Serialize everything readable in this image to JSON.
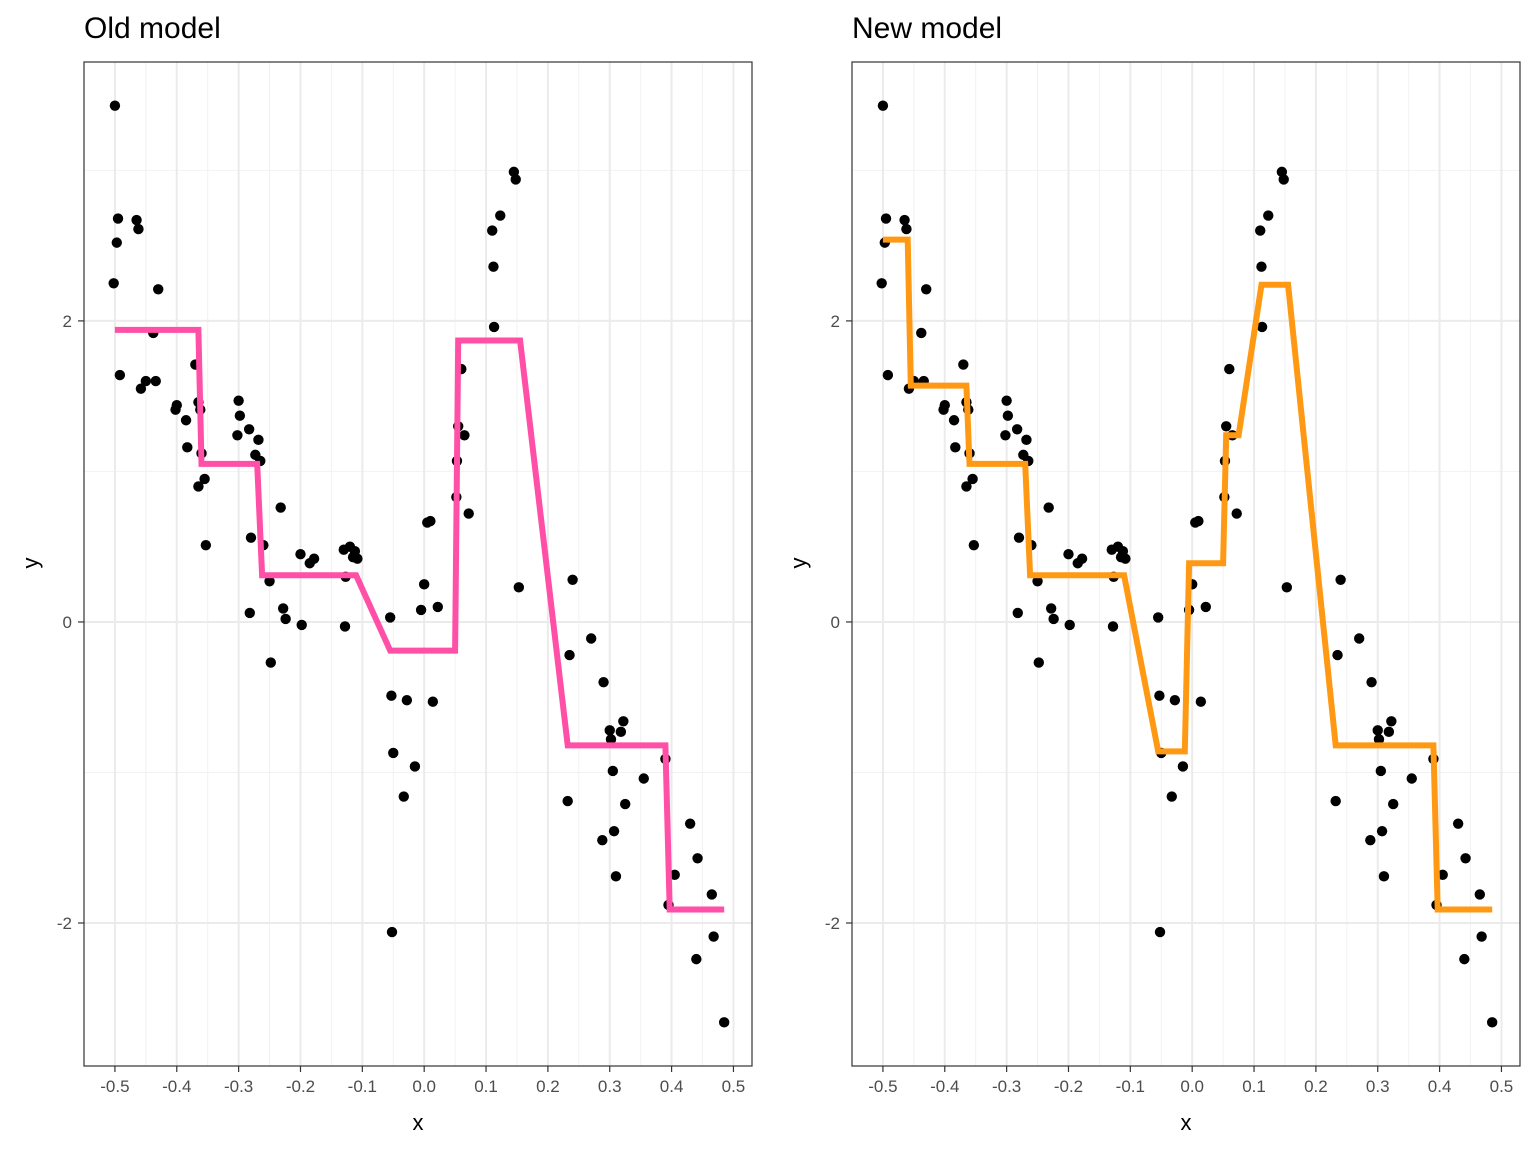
{
  "chart_data": [
    {
      "type": "scatter",
      "title": "Old model",
      "xlabel": "x",
      "ylabel": "y",
      "xlim": [
        -0.55,
        0.53
      ],
      "ylim": [
        -2.95,
        3.72
      ],
      "xticks": [
        "-0.5",
        "-0.4",
        "-0.3",
        "-0.2",
        "-0.1",
        "0.0",
        "0.1",
        "0.2",
        "0.3",
        "0.4",
        "0.5"
      ],
      "yticks": [
        "-2",
        "0",
        "2"
      ],
      "grid": true,
      "line_color": "#ff4fa7",
      "points": [
        [
          -0.5,
          3.43
        ],
        [
          -0.495,
          2.68
        ],
        [
          -0.497,
          2.52
        ],
        [
          -0.502,
          2.25
        ],
        [
          -0.492,
          1.64
        ],
        [
          -0.465,
          2.67
        ],
        [
          -0.462,
          2.61
        ],
        [
          -0.458,
          1.55
        ],
        [
          -0.45,
          1.6
        ],
        [
          -0.438,
          1.92
        ],
        [
          -0.434,
          1.6
        ],
        [
          -0.43,
          2.21
        ],
        [
          -0.402,
          1.41
        ],
        [
          -0.4,
          1.44
        ],
        [
          -0.385,
          1.34
        ],
        [
          -0.383,
          1.16
        ],
        [
          -0.37,
          1.71
        ],
        [
          -0.365,
          1.46
        ],
        [
          -0.362,
          1.41
        ],
        [
          -0.36,
          1.12
        ],
        [
          -0.365,
          0.9
        ],
        [
          -0.355,
          0.95
        ],
        [
          -0.353,
          0.51
        ],
        [
          -0.3,
          1.47
        ],
        [
          -0.298,
          1.37
        ],
        [
          -0.302,
          1.24
        ],
        [
          -0.283,
          1.28
        ],
        [
          -0.28,
          0.56
        ],
        [
          -0.282,
          0.06
        ],
        [
          -0.273,
          1.11
        ],
        [
          -0.268,
          1.21
        ],
        [
          -0.265,
          1.07
        ],
        [
          -0.26,
          0.51
        ],
        [
          -0.25,
          0.27
        ],
        [
          -0.248,
          -0.27
        ],
        [
          -0.232,
          0.76
        ],
        [
          -0.228,
          0.09
        ],
        [
          -0.224,
          0.02
        ],
        [
          -0.2,
          0.45
        ],
        [
          -0.198,
          -0.02
        ],
        [
          -0.185,
          0.39
        ],
        [
          -0.178,
          0.42
        ],
        [
          -0.13,
          0.48
        ],
        [
          -0.127,
          0.3
        ],
        [
          -0.128,
          -0.03
        ],
        [
          -0.12,
          0.5
        ],
        [
          -0.115,
          0.43
        ],
        [
          -0.112,
          0.47
        ],
        [
          -0.108,
          0.42
        ],
        [
          -0.055,
          0.03
        ],
        [
          -0.053,
          -0.49
        ],
        [
          -0.05,
          -0.87
        ],
        [
          -0.052,
          -2.06
        ],
        [
          -0.033,
          -1.16
        ],
        [
          -0.028,
          -0.52
        ],
        [
          -0.015,
          -0.96
        ],
        [
          -0.005,
          0.08
        ],
        [
          0.0,
          0.25
        ],
        [
          0.005,
          0.66
        ],
        [
          0.01,
          0.67
        ],
        [
          0.014,
          -0.53
        ],
        [
          0.022,
          0.1
        ],
        [
          0.052,
          0.83
        ],
        [
          0.053,
          1.07
        ],
        [
          0.055,
          1.3
        ],
        [
          0.06,
          1.68
        ],
        [
          0.065,
          1.24
        ],
        [
          0.072,
          0.72
        ],
        [
          0.11,
          2.6
        ],
        [
          0.112,
          2.36
        ],
        [
          0.113,
          1.96
        ],
        [
          0.123,
          2.7
        ],
        [
          0.145,
          2.99
        ],
        [
          0.148,
          2.94
        ],
        [
          0.153,
          0.23
        ],
        [
          0.232,
          -1.19
        ],
        [
          0.235,
          -0.22
        ],
        [
          0.24,
          0.28
        ],
        [
          0.27,
          -0.11
        ],
        [
          0.288,
          -1.45
        ],
        [
          0.29,
          -0.4
        ],
        [
          0.3,
          -0.72
        ],
        [
          0.302,
          -0.78
        ],
        [
          0.305,
          -0.99
        ],
        [
          0.307,
          -1.39
        ],
        [
          0.31,
          -1.69
        ],
        [
          0.318,
          -0.73
        ],
        [
          0.322,
          -0.66
        ],
        [
          0.325,
          -1.21
        ],
        [
          0.355,
          -1.04
        ],
        [
          0.39,
          -0.91
        ],
        [
          0.395,
          -1.88
        ],
        [
          0.405,
          -1.68
        ],
        [
          0.43,
          -1.34
        ],
        [
          0.44,
          -2.24
        ],
        [
          0.442,
          -1.57
        ],
        [
          0.465,
          -1.81
        ],
        [
          0.468,
          -2.09
        ],
        [
          0.485,
          -2.66
        ]
      ],
      "fit_line": [
        [
          -0.5,
          1.94
        ],
        [
          -0.365,
          1.94
        ],
        [
          -0.36,
          1.05
        ],
        [
          -0.27,
          1.05
        ],
        [
          -0.262,
          0.31
        ],
        [
          -0.11,
          0.31
        ],
        [
          -0.055,
          -0.19
        ],
        [
          0.05,
          -0.19
        ],
        [
          0.055,
          1.87
        ],
        [
          0.155,
          1.87
        ],
        [
          0.232,
          -0.82
        ],
        [
          0.39,
          -0.82
        ],
        [
          0.397,
          -1.91
        ],
        [
          0.485,
          -1.91
        ]
      ]
    },
    {
      "type": "scatter",
      "title": "New model",
      "xlabel": "x",
      "ylabel": "y",
      "xlim": [
        -0.55,
        0.53
      ],
      "ylim": [
        -2.95,
        3.72
      ],
      "xticks": [
        "-0.5",
        "-0.4",
        "-0.3",
        "-0.2",
        "-0.1",
        "0.0",
        "0.1",
        "0.2",
        "0.3",
        "0.4",
        "0.5"
      ],
      "yticks": [
        "-2",
        "0",
        "2"
      ],
      "grid": true,
      "line_color": "#ff9913",
      "points": [
        [
          -0.5,
          3.43
        ],
        [
          -0.495,
          2.68
        ],
        [
          -0.497,
          2.52
        ],
        [
          -0.502,
          2.25
        ],
        [
          -0.492,
          1.64
        ],
        [
          -0.465,
          2.67
        ],
        [
          -0.462,
          2.61
        ],
        [
          -0.458,
          1.55
        ],
        [
          -0.45,
          1.6
        ],
        [
          -0.438,
          1.92
        ],
        [
          -0.434,
          1.6
        ],
        [
          -0.43,
          2.21
        ],
        [
          -0.402,
          1.41
        ],
        [
          -0.4,
          1.44
        ],
        [
          -0.385,
          1.34
        ],
        [
          -0.383,
          1.16
        ],
        [
          -0.37,
          1.71
        ],
        [
          -0.365,
          1.46
        ],
        [
          -0.362,
          1.41
        ],
        [
          -0.36,
          1.12
        ],
        [
          -0.365,
          0.9
        ],
        [
          -0.355,
          0.95
        ],
        [
          -0.353,
          0.51
        ],
        [
          -0.3,
          1.47
        ],
        [
          -0.298,
          1.37
        ],
        [
          -0.302,
          1.24
        ],
        [
          -0.283,
          1.28
        ],
        [
          -0.28,
          0.56
        ],
        [
          -0.282,
          0.06
        ],
        [
          -0.273,
          1.11
        ],
        [
          -0.268,
          1.21
        ],
        [
          -0.265,
          1.07
        ],
        [
          -0.26,
          0.51
        ],
        [
          -0.25,
          0.27
        ],
        [
          -0.248,
          -0.27
        ],
        [
          -0.232,
          0.76
        ],
        [
          -0.228,
          0.09
        ],
        [
          -0.224,
          0.02
        ],
        [
          -0.2,
          0.45
        ],
        [
          -0.198,
          -0.02
        ],
        [
          -0.185,
          0.39
        ],
        [
          -0.178,
          0.42
        ],
        [
          -0.13,
          0.48
        ],
        [
          -0.127,
          0.3
        ],
        [
          -0.128,
          -0.03
        ],
        [
          -0.12,
          0.5
        ],
        [
          -0.115,
          0.43
        ],
        [
          -0.112,
          0.47
        ],
        [
          -0.108,
          0.42
        ],
        [
          -0.055,
          0.03
        ],
        [
          -0.053,
          -0.49
        ],
        [
          -0.05,
          -0.87
        ],
        [
          -0.052,
          -2.06
        ],
        [
          -0.033,
          -1.16
        ],
        [
          -0.028,
          -0.52
        ],
        [
          -0.015,
          -0.96
        ],
        [
          -0.005,
          0.08
        ],
        [
          0.0,
          0.25
        ],
        [
          0.005,
          0.66
        ],
        [
          0.01,
          0.67
        ],
        [
          0.014,
          -0.53
        ],
        [
          0.022,
          0.1
        ],
        [
          0.052,
          0.83
        ],
        [
          0.053,
          1.07
        ],
        [
          0.055,
          1.3
        ],
        [
          0.06,
          1.68
        ],
        [
          0.065,
          1.24
        ],
        [
          0.072,
          0.72
        ],
        [
          0.11,
          2.6
        ],
        [
          0.112,
          2.36
        ],
        [
          0.113,
          1.96
        ],
        [
          0.123,
          2.7
        ],
        [
          0.145,
          2.99
        ],
        [
          0.148,
          2.94
        ],
        [
          0.153,
          0.23
        ],
        [
          0.232,
          -1.19
        ],
        [
          0.235,
          -0.22
        ],
        [
          0.24,
          0.28
        ],
        [
          0.27,
          -0.11
        ],
        [
          0.288,
          -1.45
        ],
        [
          0.29,
          -0.4
        ],
        [
          0.3,
          -0.72
        ],
        [
          0.302,
          -0.78
        ],
        [
          0.305,
          -0.99
        ],
        [
          0.307,
          -1.39
        ],
        [
          0.31,
          -1.69
        ],
        [
          0.318,
          -0.73
        ],
        [
          0.322,
          -0.66
        ],
        [
          0.325,
          -1.21
        ],
        [
          0.355,
          -1.04
        ],
        [
          0.39,
          -0.91
        ],
        [
          0.395,
          -1.88
        ],
        [
          0.405,
          -1.68
        ],
        [
          0.43,
          -1.34
        ],
        [
          0.44,
          -2.24
        ],
        [
          0.442,
          -1.57
        ],
        [
          0.465,
          -1.81
        ],
        [
          0.468,
          -2.09
        ],
        [
          0.485,
          -2.66
        ]
      ],
      "fit_line": [
        [
          -0.5,
          2.54
        ],
        [
          -0.46,
          2.54
        ],
        [
          -0.455,
          1.57
        ],
        [
          -0.365,
          1.57
        ],
        [
          -0.36,
          1.05
        ],
        [
          -0.27,
          1.05
        ],
        [
          -0.262,
          0.31
        ],
        [
          -0.11,
          0.31
        ],
        [
          -0.055,
          -0.86
        ],
        [
          -0.012,
          -0.86
        ],
        [
          -0.005,
          0.39
        ],
        [
          0.05,
          0.39
        ],
        [
          0.055,
          1.24
        ],
        [
          0.075,
          1.24
        ],
        [
          0.112,
          2.24
        ],
        [
          0.155,
          2.24
        ],
        [
          0.232,
          -0.82
        ],
        [
          0.39,
          -0.82
        ],
        [
          0.397,
          -1.91
        ],
        [
          0.485,
          -1.91
        ]
      ]
    }
  ]
}
